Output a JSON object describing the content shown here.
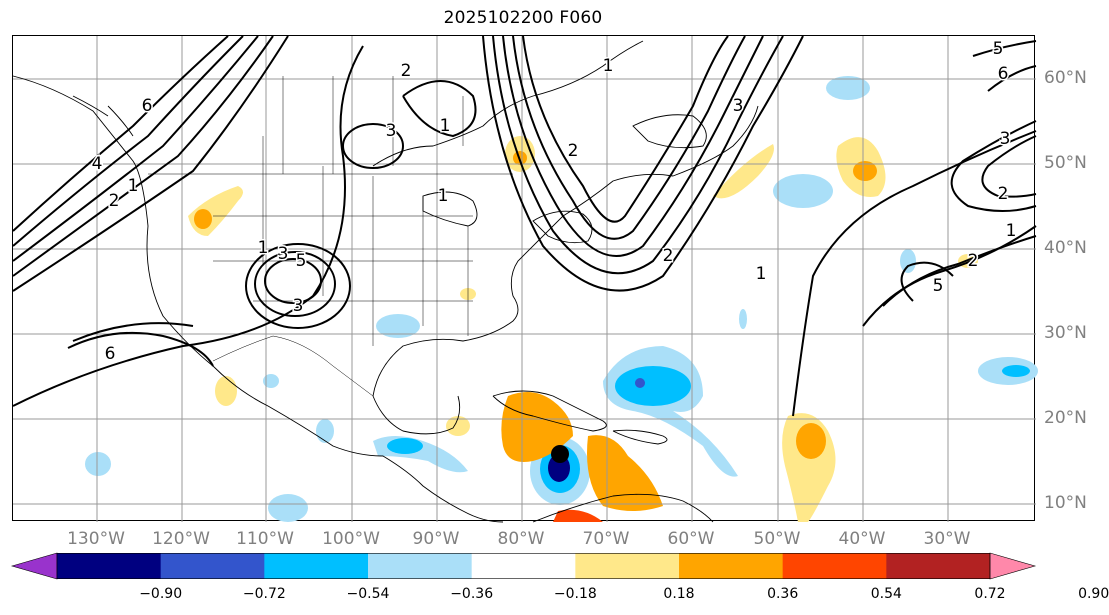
{
  "title": "2025102200 F060",
  "lon_labels": [
    "130°W",
    "120°W",
    "110°W",
    "100°W",
    "90°W",
    "80°W",
    "70°W",
    "60°W",
    "50°W",
    "40°W",
    "30°W"
  ],
  "lat_labels": [
    "60°N",
    "50°N",
    "40°N",
    "30°N",
    "20°N",
    "10°N"
  ],
  "contour_labels": [
    "6",
    "4",
    "2",
    "1",
    "1",
    "3",
    "5",
    "3",
    "2",
    "1",
    "1",
    "3",
    "5",
    "6",
    "3",
    "2",
    "1",
    "2",
    "5",
    "6",
    "3",
    "2",
    "1",
    "2",
    "1"
  ],
  "colorbar": {
    "ticks": [
      "−0.90",
      "−0.72",
      "−0.54",
      "−0.36",
      "−0.18",
      "0.18",
      "0.36",
      "0.54",
      "0.72",
      "0.90"
    ],
    "colors": [
      "#9933cc",
      "#000080",
      "#3355cc",
      "#00bfff",
      "#aadff8",
      "#ffffff",
      "#ffe88a",
      "#ffa500",
      "#ff4500",
      "#b22222",
      "#ff88aa"
    ]
  },
  "colors": {
    "contour": "#000000",
    "grid": "#999999",
    "axis_label": "#808080",
    "marker": "#000000"
  },
  "storm_marker": {
    "lon": "75°W",
    "lat": "16°N"
  }
}
